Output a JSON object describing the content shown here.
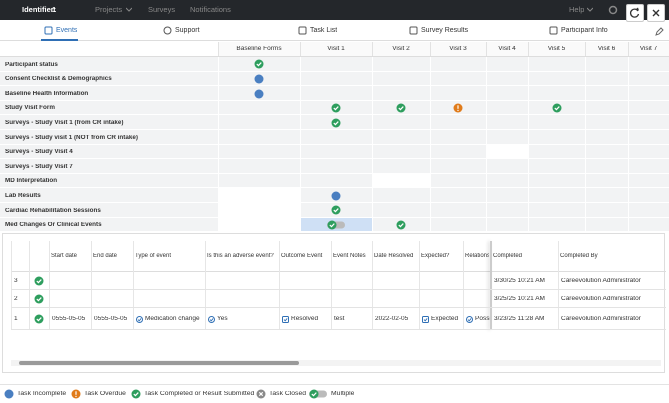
{
  "top_bar": {
    "identifier_label": "Identifier:",
    "identifier": "1",
    "menu": [
      "Projects",
      "Surveys",
      "Notifications"
    ],
    "help": "Help"
  },
  "tabs": [
    {
      "label": "Events",
      "active": true
    },
    {
      "label": "Support",
      "active": false
    },
    {
      "label": "Task List",
      "active": false
    },
    {
      "label": "Survey Results",
      "active": false
    },
    {
      "label": "Participant Info",
      "active": false
    }
  ],
  "grid": {
    "columns": [
      "Baseline Forms",
      "Visit 1",
      "Visit 2",
      "Visit 3",
      "Visit 4",
      "Visit 5",
      "Visit 6",
      "Visit 7"
    ],
    "rows": [
      {
        "label": "Participant status",
        "cells": [
          "completed",
          null,
          null,
          null,
          null,
          null,
          null,
          null
        ]
      },
      {
        "label": "Consent Checklist & Demographics",
        "cells": [
          "incomplete",
          null,
          null,
          null,
          null,
          null,
          null,
          null
        ]
      },
      {
        "label": "Baseline Health Information",
        "cells": [
          "incomplete",
          null,
          null,
          null,
          null,
          null,
          null,
          null
        ]
      },
      {
        "label": "Study Visit Form",
        "cells": [
          null,
          "completed",
          "completed",
          "overdue",
          null,
          "completed",
          null,
          null
        ]
      },
      {
        "label": "Surveys - Study Visit 1 (from CR intake)",
        "cells": [
          null,
          "completed",
          null,
          null,
          null,
          null,
          null,
          null
        ]
      },
      {
        "label": "Surveys - Study visit 1 (NOT from CR intake)",
        "cells": [
          null,
          null,
          null,
          null,
          null,
          null,
          null,
          null
        ]
      },
      {
        "label": "Surveys - Study Visit 4",
        "cells": [
          null,
          null,
          null,
          null,
          null,
          null,
          null,
          null
        ]
      },
      {
        "label": "Surveys - Study Visit 7",
        "cells": [
          null,
          null,
          null,
          null,
          null,
          null,
          null,
          null
        ]
      },
      {
        "label": "MD Interpretation",
        "cells": [
          null,
          null,
          null,
          null,
          null,
          null,
          null,
          null
        ]
      },
      {
        "label": "Lab Results",
        "cells": [
          null,
          "incomplete",
          null,
          null,
          null,
          null,
          null,
          null
        ]
      },
      {
        "label": "Cardiac Rehabilitation Sessions",
        "cells": [
          null,
          "completed",
          null,
          null,
          null,
          null,
          null,
          null
        ]
      },
      {
        "label": "Med Changes Or Clinical Events",
        "cells": [
          null,
          "multiple",
          "completed",
          null,
          null,
          null,
          null,
          null
        ]
      }
    ]
  },
  "detail": {
    "headers": [
      "Start date",
      "End date",
      "Type of event",
      "Is this an adverse event?",
      "Outcome Event",
      "Event Notes",
      "Date Resolved",
      "Expected?",
      "Relations",
      "Completed",
      "Completed By"
    ],
    "rows": [
      {
        "index": "3",
        "status": "completed",
        "cells": [
          null,
          null,
          null,
          null,
          null,
          null,
          null,
          null,
          null,
          "3/30/25 10:21 AM",
          "Careevolution Administrator"
        ]
      },
      {
        "index": "2",
        "status": "completed",
        "cells": [
          null,
          null,
          null,
          null,
          null,
          null,
          null,
          null,
          null,
          "3/25/25 10:21 AM",
          "Careevolution Administrator"
        ]
      },
      {
        "index": "1",
        "status": "completed",
        "cells": [
          "0555-05-05",
          "0555-05-05",
          "Medication change",
          "Yes",
          "Resolved",
          "test",
          "2022-02-05",
          "Expected",
          "Possi",
          "3/23/25 11:28 AM",
          "Careevolution Administrator"
        ]
      }
    ]
  },
  "legend": [
    {
      "label": "Task Incomplete",
      "status": "incomplete"
    },
    {
      "label": "Task Overdue",
      "status": "overdue"
    },
    {
      "label": "Task Completed or Result Submitted",
      "status": "completed"
    },
    {
      "label": "Task Closed",
      "status": "closed"
    },
    {
      "label": "Multiple",
      "status": "multiple"
    }
  ]
}
